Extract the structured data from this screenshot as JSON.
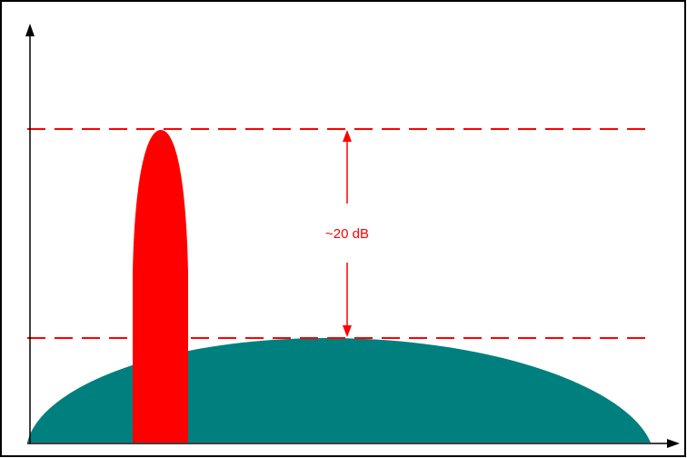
{
  "diagram": {
    "annotation_label": "~20 dB",
    "colors": {
      "frame": "#000000",
      "axes": "#000000",
      "narrowband_signal": "#ff0000",
      "wideband_signal": "#007f7f",
      "reference_lines": "#ff0000",
      "annotation": "#ff0000",
      "background": "#ffffff"
    }
  }
}
